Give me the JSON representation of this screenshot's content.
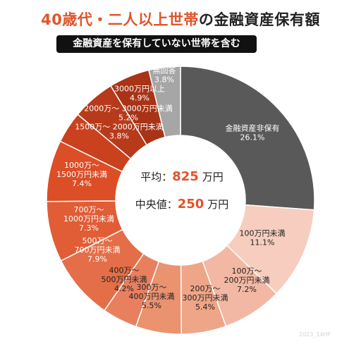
{
  "title_accent": "40歳代・二人以上世帯",
  "title_rest": "の金融資産保有額",
  "subtitle": "金融資産を保有していない世帯を含む",
  "center": {
    "mean_label": "平均：",
    "mean_value": "825",
    "median_label": "中央値：",
    "median_value": "250",
    "unit": "万円"
  },
  "watermark": "2023_14HF",
  "colors": {
    "accent": "#e0542a"
  },
  "chart_data": {
    "type": "pie",
    "donut": true,
    "title": "40歳代・二人以上世帯の金融資産保有額",
    "subtitle": "金融資産を保有していない世帯を含む",
    "slices": [
      {
        "label": "金融資産非保有",
        "value": 26.1,
        "display": "26.1%",
        "color": "#595959",
        "text_color": "#ffffff"
      },
      {
        "label": "100万円未満",
        "value": 11.1,
        "display": "11.1%",
        "color": "#f6cdbf",
        "text_color": "#222222"
      },
      {
        "label": "100万～\n200万円未満",
        "value": 7.2,
        "display": "7.2%",
        "color": "#f3b8a3",
        "text_color": "#222222"
      },
      {
        "label": "200万～\n300万円未満",
        "value": 5.4,
        "display": "5.4%",
        "color": "#efa587",
        "text_color": "#222222"
      },
      {
        "label": "300万～\n400万円未満",
        "value": 5.5,
        "display": "5.5%",
        "color": "#eb926f",
        "text_color": "#222222"
      },
      {
        "label": "400万～\n500万円未満",
        "value": 4.2,
        "display": "4.2%",
        "color": "#e88060",
        "text_color": "#222222"
      },
      {
        "label": "500万～\n700万円未満",
        "value": 7.9,
        "display": "7.9%",
        "color": "#e46e48",
        "text_color": "#ffffff"
      },
      {
        "label": "700万～\n1000万円未満",
        "value": 7.3,
        "display": "7.3%",
        "color": "#e05d36",
        "text_color": "#ffffff"
      },
      {
        "label": "1000万～\n1500万円未満",
        "value": 7.4,
        "display": "7.4%",
        "color": "#db4e26",
        "text_color": "#ffffff"
      },
      {
        "label": "1500万～ 2000万円未満",
        "value": 3.8,
        "display": "3.8%",
        "color": "#c9421d",
        "text_color": "#ffffff"
      },
      {
        "label": "2000万～ 3000万円未満",
        "value": 5.2,
        "display": "5.2%",
        "color": "#b73a1a",
        "text_color": "#ffffff"
      },
      {
        "label": "3000万円以上",
        "value": 4.9,
        "display": "4.9%",
        "color": "#a93316",
        "text_color": "#ffffff"
      },
      {
        "label": "無回答",
        "value": 3.8,
        "display": "3.8%",
        "color": "#a6a6a6",
        "text_color": "#ffffff"
      }
    ]
  }
}
